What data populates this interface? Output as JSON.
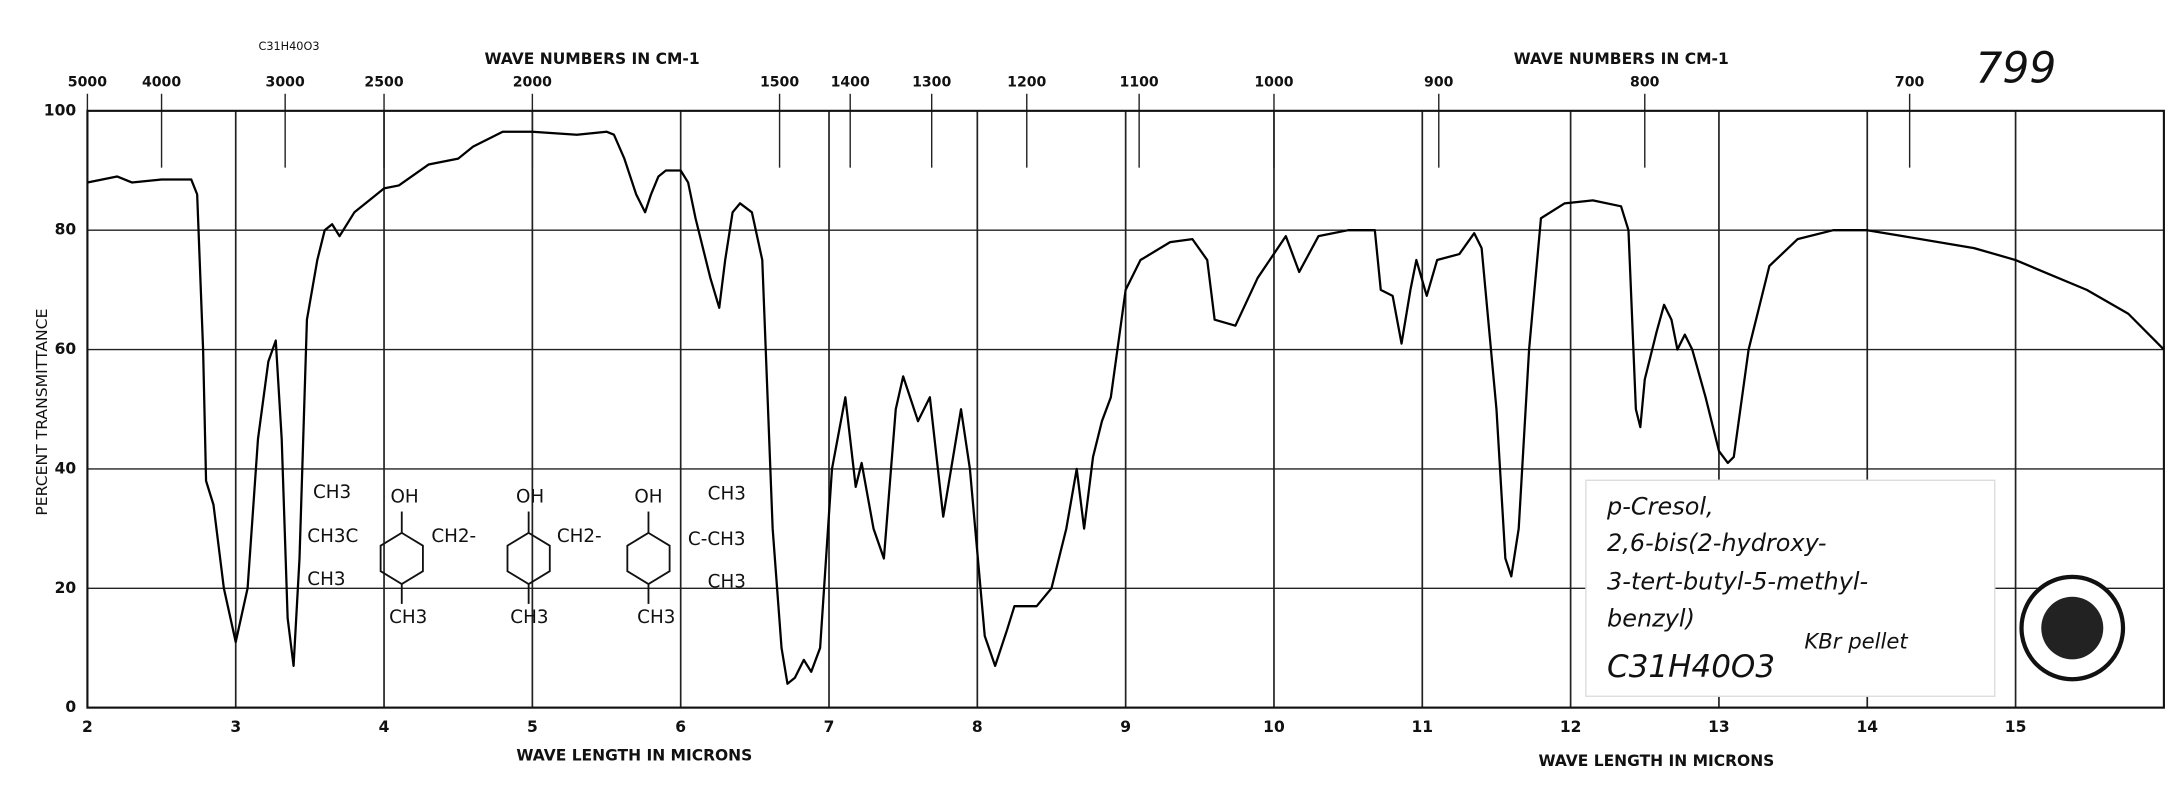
{
  "chart_data": {
    "type": "line",
    "corner_number": "799",
    "formula_top": "C31H40O3",
    "x2_axis_labels": [
      "WAVE NUMBERS IN CM-1",
      "WAVE NUMBERS IN CM-1"
    ],
    "x_axis_labels": [
      "WAVE LENGTH IN MICRONS",
      "WAVE LENGTH IN MICRONS"
    ],
    "y_axis_label": "PERCENT TRANSMITTANCE",
    "annotation_lines": [
      "p-Cresol,",
      "2,6-bis(2-hydroxy-",
      "3-tert-butyl-5-methyl-",
      "benzyl)",
      "C31H40O3"
    ],
    "sample_note": "KBr pellet",
    "structure_labels": [
      "CH3",
      "OH",
      "CH3C",
      "CH2-",
      "CH3",
      "CH3",
      "OH",
      "CH2-",
      "CH3",
      "OH",
      "CH3",
      "C-CH3",
      "CH3",
      "CH3"
    ],
    "color": "#000000",
    "grid": true,
    "xlim": [
      2,
      16
    ],
    "xticks": [
      2,
      3,
      4,
      5,
      6,
      7,
      8,
      9,
      10,
      11,
      12,
      13,
      14,
      15
    ],
    "x2ticks": [
      5000,
      4000,
      3000,
      2500,
      2000,
      1500,
      1400,
      1300,
      1200,
      1100,
      1000,
      900,
      800,
      700
    ],
    "ylim": [
      0,
      100
    ],
    "yticks": [
      0,
      20,
      40,
      60,
      80,
      100
    ],
    "x": [
      2.0,
      2.2,
      2.3,
      2.5,
      2.7,
      2.74,
      2.78,
      2.8,
      2.85,
      2.92,
      3.0,
      3.08,
      3.15,
      3.22,
      3.27,
      3.31,
      3.35,
      3.39,
      3.43,
      3.48,
      3.55,
      3.6,
      3.65,
      3.7,
      3.8,
      3.9,
      4.0,
      4.1,
      4.3,
      4.5,
      4.6,
      4.8,
      5.0,
      5.3,
      5.5,
      5.55,
      5.62,
      5.7,
      5.76,
      5.8,
      5.85,
      5.9,
      6.0,
      6.05,
      6.1,
      6.2,
      6.26,
      6.3,
      6.35,
      6.4,
      6.48,
      6.55,
      6.62,
      6.68,
      6.72,
      6.77,
      6.83,
      6.88,
      6.94,
      7.02,
      7.11,
      7.18,
      7.22,
      7.3,
      7.37,
      7.45,
      7.5,
      7.6,
      7.68,
      7.77,
      7.89,
      7.95,
      8.05,
      8.12,
      8.2,
      8.25,
      8.4,
      8.5,
      8.6,
      8.67,
      8.72,
      8.78,
      8.84,
      8.9,
      9.0,
      9.1,
      9.3,
      9.45,
      9.55,
      9.6,
      9.74,
      9.89,
      10.08,
      10.17,
      10.3,
      10.5,
      10.68,
      10.72,
      10.8,
      10.86,
      10.92,
      10.96,
      11.03,
      11.1,
      11.25,
      11.35,
      11.4,
      11.5,
      11.56,
      11.6,
      11.65,
      11.72,
      11.8,
      11.96,
      12.15,
      12.34,
      12.39,
      12.44,
      12.47,
      12.5,
      12.58,
      12.63,
      12.68,
      12.72,
      12.77,
      12.82,
      12.91,
      13.0,
      13.06,
      13.1,
      13.2,
      13.34,
      13.53,
      13.77,
      14.0,
      14.24,
      14.72,
      15.0,
      15.19,
      15.48,
      15.76,
      16.0
    ],
    "values": [
      88,
      89,
      88,
      88.5,
      88.5,
      86,
      60,
      38,
      34,
      20,
      11,
      20,
      45,
      58,
      61.5,
      45,
      15,
      7,
      25,
      65,
      75,
      80,
      81,
      79,
      83,
      85,
      87,
      87.5,
      91,
      92,
      94,
      96.5,
      96.5,
      96,
      96.5,
      96,
      92,
      86,
      83,
      86,
      89,
      90,
      90,
      88,
      82,
      72,
      67,
      75,
      83,
      84.5,
      83,
      75,
      30,
      10,
      4,
      5,
      8,
      6,
      10,
      40,
      52,
      37,
      41,
      30,
      25,
      50,
      55.5,
      48,
      52,
      32,
      50,
      40,
      12,
      7,
      13,
      17,
      17,
      20,
      30,
      40,
      30,
      42,
      48,
      52,
      70,
      75,
      78,
      78.5,
      75,
      65,
      64,
      72,
      79,
      73,
      79,
      80,
      80,
      70,
      69,
      61,
      70,
      75,
      69,
      75,
      76,
      79.5,
      77,
      50,
      25,
      22,
      30,
      60,
      82,
      84.5,
      85,
      84,
      80,
      50,
      47,
      55,
      63,
      67.5,
      65,
      60,
      62.5,
      60,
      52,
      43,
      41,
      42,
      60,
      74,
      78.5,
      80,
      80,
      79,
      77,
      75,
      73,
      70,
      66,
      60
    ]
  }
}
